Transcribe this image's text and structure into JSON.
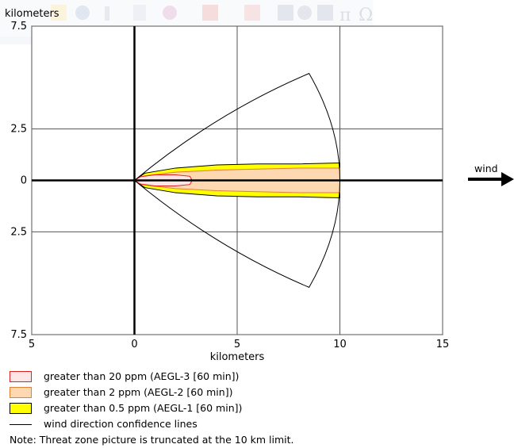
{
  "ribbon": {
    "icons": [
      "shape-icon",
      "zoom-icon",
      "info-icon",
      "page-icon",
      "plot-icon",
      "chart-icon",
      "table-icon",
      "clock-icon",
      "grid-icon",
      "pi-icon",
      "omega-icon"
    ]
  },
  "chart_data": {
    "type": "area",
    "xlabel": "kilometers",
    "ylabel": "kilometers",
    "xlim": [
      -5,
      15
    ],
    "ylim": [
      -7.5,
      7.5
    ],
    "x_ticks": [
      -5,
      0,
      5,
      10,
      15
    ],
    "x_tick_labels": [
      "5",
      "0",
      "5",
      "10",
      "15"
    ],
    "y_ticks": [
      7.5,
      2.5,
      0,
      -2.5,
      -7.5
    ],
    "y_tick_labels": [
      "7.5",
      "2.5",
      "0",
      "2.5",
      "7.5"
    ],
    "grid": true,
    "wind_label": "wind",
    "wind_direction": "east",
    "series": [
      {
        "name": "greater than 0.5 ppm (AEGL-1 [60 min])",
        "color": "#ffff00",
        "edge": "#000000",
        "x": [
          0,
          0.5,
          2,
          4,
          6,
          8,
          10
        ],
        "upper": [
          0,
          0.35,
          0.6,
          0.75,
          0.8,
          0.8,
          0.85
        ],
        "lower": [
          0,
          -0.35,
          -0.6,
          -0.75,
          -0.8,
          -0.8,
          -0.85
        ]
      },
      {
        "name": "greater than 2 ppm (AEGL-2 [60 min])",
        "color": "#fed8b1",
        "edge": "#e08030",
        "x": [
          0,
          0.5,
          2,
          4,
          6,
          8,
          10
        ],
        "upper": [
          0,
          0.22,
          0.4,
          0.5,
          0.55,
          0.6,
          0.6
        ],
        "lower": [
          0,
          -0.22,
          -0.4,
          -0.5,
          -0.55,
          -0.6,
          -0.6
        ]
      },
      {
        "name": "greater than 20 ppm (AEGL-3 [60 min])",
        "color": "#ffe6e6",
        "edge": "#e02020",
        "x": [
          0,
          0.3,
          1,
          2,
          2.7,
          2.8
        ],
        "upper": [
          0,
          0.18,
          0.27,
          0.27,
          0.2,
          0.0
        ],
        "lower": [
          0,
          -0.18,
          -0.27,
          -0.27,
          -0.2,
          0.0
        ]
      }
    ],
    "confidence_lines": {
      "name": "wind direction confidence lines",
      "color": "#000000",
      "upper_end": [
        8.5,
        5.2
      ],
      "lower_end": [
        8.5,
        -5.2
      ],
      "arc_mid": [
        10,
        0
      ]
    }
  },
  "note": "Note: Threat zone picture is truncated at the 10 km limit."
}
